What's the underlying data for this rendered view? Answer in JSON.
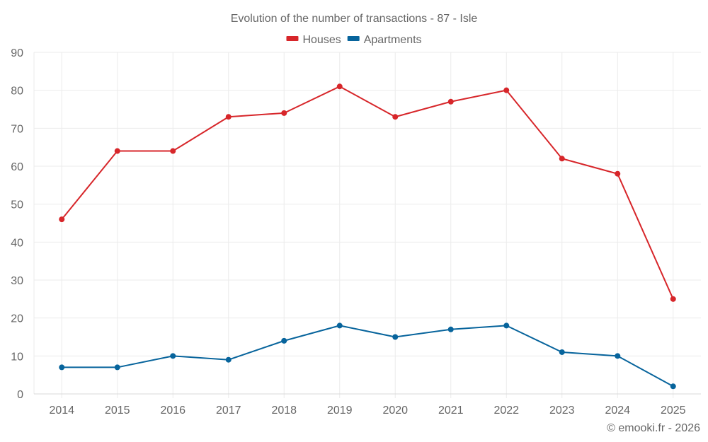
{
  "chart_data": {
    "type": "line",
    "title": "Evolution of the number of transactions - 87 - Isle",
    "xlabel": "",
    "ylabel": "",
    "categories": [
      "2014",
      "2015",
      "2016",
      "2017",
      "2018",
      "2019",
      "2020",
      "2021",
      "2022",
      "2023",
      "2024",
      "2025"
    ],
    "ylim": [
      0,
      90
    ],
    "yticks": [
      0,
      10,
      20,
      30,
      40,
      50,
      60,
      70,
      80,
      90
    ],
    "grid": true,
    "legend_position": "top-center",
    "series": [
      {
        "name": "Houses",
        "color": "#d7262a",
        "values": [
          46,
          64,
          64,
          73,
          74,
          81,
          73,
          77,
          80,
          62,
          58,
          25
        ]
      },
      {
        "name": "Apartments",
        "color": "#07649c",
        "values": [
          7,
          7,
          10,
          9,
          14,
          18,
          15,
          17,
          18,
          11,
          10,
          2
        ]
      }
    ],
    "credit": "© emooki.fr - 2026"
  }
}
